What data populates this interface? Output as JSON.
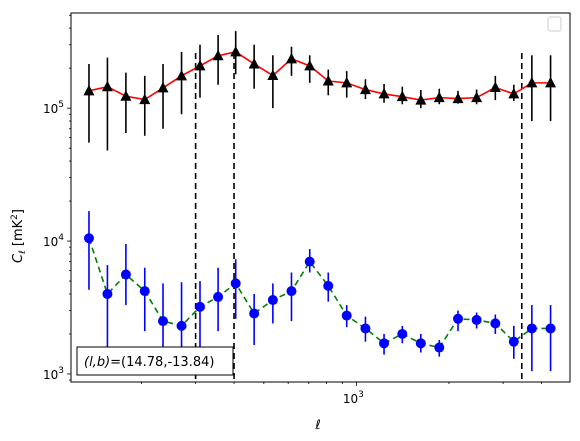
{
  "chart_data": {
    "type": "line",
    "xscale": "log",
    "yscale": "log",
    "xlim": [
      118,
      4950
    ],
    "ylim": [
      870,
      520000
    ],
    "xlabel": "ℓ",
    "ylabel_main": "C",
    "ylabel_sub": "ℓ",
    "ylabel_unit": "[mK",
    "ylabel_unit_sup": "2",
    "ylabel_unit_close": "]",
    "x_ticks": [
      {
        "value": 1000,
        "base": "10",
        "exp": "3"
      }
    ],
    "y_ticks": [
      {
        "value": 1000,
        "base": "10",
        "exp": "3"
      },
      {
        "value": 10000,
        "base": "10",
        "exp": "4"
      },
      {
        "value": 100000,
        "base": "10",
        "exp": "5"
      }
    ],
    "legend": {
      "placement": "top-right",
      "entries": []
    },
    "annotation": {
      "text": "(l, b)=(14.78,-13.84)",
      "math": "(l,b)",
      "rest": "=(14.78,-13.84)"
    },
    "vlines": [
      300,
      400,
      3450
    ],
    "series": [
      {
        "marker": "triangle",
        "marker_color": "#000000",
        "line_color": "#ff0000",
        "line_style": "solid",
        "errorbar_color": "#000000",
        "x": [
          135,
          155,
          178,
          205,
          235,
          270,
          310,
          355,
          405,
          465,
          535,
          615,
          705,
          810,
          930,
          1070,
          1230,
          1410,
          1620,
          1860,
          2140,
          2460,
          2830,
          3250,
          3720,
          4280
        ],
        "y": [
          135000,
          145000,
          123000,
          116000,
          142000,
          175000,
          208000,
          248000,
          265000,
          215000,
          176000,
          235000,
          208000,
          160000,
          155000,
          138000,
          128000,
          122000,
          115000,
          120000,
          118000,
          120000,
          143000,
          128000,
          155000,
          155000
        ],
        "yerr_low": [
          55000,
          48000,
          65000,
          62000,
          70000,
          90000,
          120000,
          150000,
          180000,
          140000,
          100000,
          175000,
          155000,
          125000,
          120000,
          117000,
          110000,
          107000,
          100000,
          107000,
          108000,
          107000,
          115000,
          113000,
          80000,
          80000
        ],
        "yerr_high": [
          215000,
          240000,
          185000,
          175000,
          215000,
          265000,
          300000,
          355000,
          380000,
          300000,
          250000,
          290000,
          250000,
          195000,
          190000,
          165000,
          152000,
          145000,
          137000,
          140000,
          135000,
          138000,
          175000,
          150000,
          250000,
          250000
        ]
      },
      {
        "marker": "circle",
        "marker_color": "#0000ff",
        "line_color": "#008000",
        "line_style": "dashed",
        "errorbar_color": "#0000ff",
        "x": [
          135,
          155,
          178,
          205,
          235,
          270,
          310,
          355,
          405,
          465,
          535,
          615,
          705,
          810,
          930,
          1070,
          1230,
          1410,
          1620,
          1860,
          2140,
          2460,
          2830,
          3250,
          3720,
          4280
        ],
        "y": [
          10500,
          4000,
          5600,
          4200,
          2500,
          2300,
          3200,
          3800,
          4800,
          2850,
          3600,
          4200,
          7000,
          4600,
          2750,
          2200,
          1700,
          2000,
          1700,
          1580,
          2600,
          2550,
          2400,
          1750,
          2200,
          2200
        ],
        "yerr_low": [
          4300,
          1300,
          3300,
          2100,
          1500,
          1300,
          1500,
          2100,
          2600,
          1650,
          2400,
          2500,
          5800,
          3500,
          2250,
          1750,
          1400,
          1700,
          1450,
          1350,
          2100,
          2200,
          2000,
          1300,
          1050,
          1050
        ],
        "yerr_high": [
          16800,
          6600,
          9500,
          6300,
          4800,
          4900,
          5000,
          6300,
          7300,
          4000,
          4800,
          5800,
          8700,
          5800,
          3300,
          2700,
          2000,
          2300,
          2000,
          1800,
          3000,
          2900,
          2800,
          2300,
          3300,
          3300
        ]
      }
    ]
  }
}
